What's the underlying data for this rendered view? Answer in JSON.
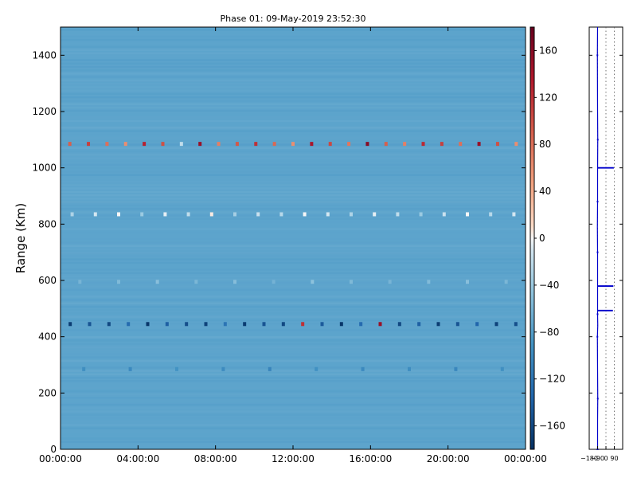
{
  "chart_data": [
    {
      "type": "heatmap",
      "title": "Phase 01: 09-May-2019 23:52:30",
      "xlabel": "",
      "ylabel": "Range (Km)",
      "xlim": [
        "00:00:00",
        "24:00:00"
      ],
      "ylim": [
        0,
        1500
      ],
      "x_tick_labels": [
        "00:00:00",
        "04:00:00",
        "08:00:00",
        "12:00:00",
        "16:00:00",
        "20:00:00",
        "00:00:00"
      ],
      "x_tick_hours": [
        0,
        4,
        8,
        12,
        16,
        20,
        24
      ],
      "y_ticks": [
        0,
        200,
        400,
        600,
        800,
        1000,
        1200,
        1400
      ],
      "background_value": -75,
      "bands": [
        {
          "range_km": 1085,
          "character": "mixed positive (red) and pale values",
          "values": [
            90,
            110,
            80,
            60,
            130,
            100,
            -20,
            150,
            70,
            95,
            120,
            85,
            60,
            140,
            105,
            75,
            160,
            90,
            70,
            125,
            110,
            80,
            150,
            100,
            60
          ]
        },
        {
          "range_km": 835,
          "character": "pale / near-zero values",
          "values": [
            -30,
            -10,
            0,
            -40,
            -5,
            -20,
            5,
            -35,
            -15,
            -25,
            0,
            -10,
            -30,
            -5,
            -20,
            -40,
            -15,
            0,
            -25,
            -10
          ]
        },
        {
          "range_km": 595,
          "character": "slightly paler streak",
          "values": [
            -60,
            -55,
            -50,
            -58,
            -52,
            -62,
            -48,
            -56,
            -60,
            -54,
            -50,
            -58
          ]
        },
        {
          "range_km": 445,
          "character": "strong negative (dark blue) with a few red",
          "values": [
            -170,
            -150,
            -160,
            -130,
            -175,
            -140,
            -155,
            -165,
            -120,
            -170,
            -150,
            -160,
            120,
            -145,
            -175,
            -130,
            150,
            -160,
            -140,
            -170,
            -150,
            -135,
            -165,
            -155
          ]
        },
        {
          "range_km": 285,
          "character": "slightly darker streak",
          "values": [
            -95,
            -100,
            -90,
            -98,
            -105,
            -92,
            -100,
            -96,
            -102,
            -94
          ]
        }
      ],
      "colorbar": {
        "colormap": "RdBu_r",
        "range": [
          -180,
          180
        ],
        "tick_labels": [
          "160",
          "120",
          "80",
          "40",
          "0",
          "−40",
          "−80",
          "−120",
          "−160"
        ],
        "tick_values": [
          160,
          120,
          80,
          40,
          0,
          -40,
          -80,
          -120,
          -160
        ]
      }
    },
    {
      "type": "line",
      "title": "",
      "xlabel": "",
      "ylabel": "",
      "xlim": [
        -180,
        180
      ],
      "ylim": [
        0,
        1500
      ],
      "x_tick_labels": [
        "−180",
        "−90",
        "0",
        "90"
      ],
      "x_tick_values": [
        -180,
        -90,
        0,
        90
      ],
      "grid": "dotted vertical",
      "series": [
        {
          "color": "#0000cc",
          "points": [
            [
              -90,
              0
            ],
            [
              -90,
              100
            ],
            [
              -88,
              180
            ],
            [
              -90,
              280
            ],
            [
              -92,
              400
            ],
            [
              -88,
              440
            ],
            [
              -90,
              480
            ],
            [
              -90,
              600
            ],
            [
              -90,
              700
            ],
            [
              -92,
              790
            ],
            [
              -90,
              880
            ],
            [
              -90,
              980
            ],
            [
              -88,
              1100
            ],
            [
              -90,
              1200
            ],
            [
              -92,
              1400
            ],
            [
              -90,
              1500
            ]
          ],
          "spikes": [
            [
              [
                -90,
                1000
              ],
              [
                85,
                1000
              ]
            ],
            [
              [
                -90,
                580
              ],
              [
                80,
                580
              ]
            ],
            [
              [
                -90,
                493
              ],
              [
                75,
                493
              ]
            ]
          ]
        }
      ]
    }
  ]
}
